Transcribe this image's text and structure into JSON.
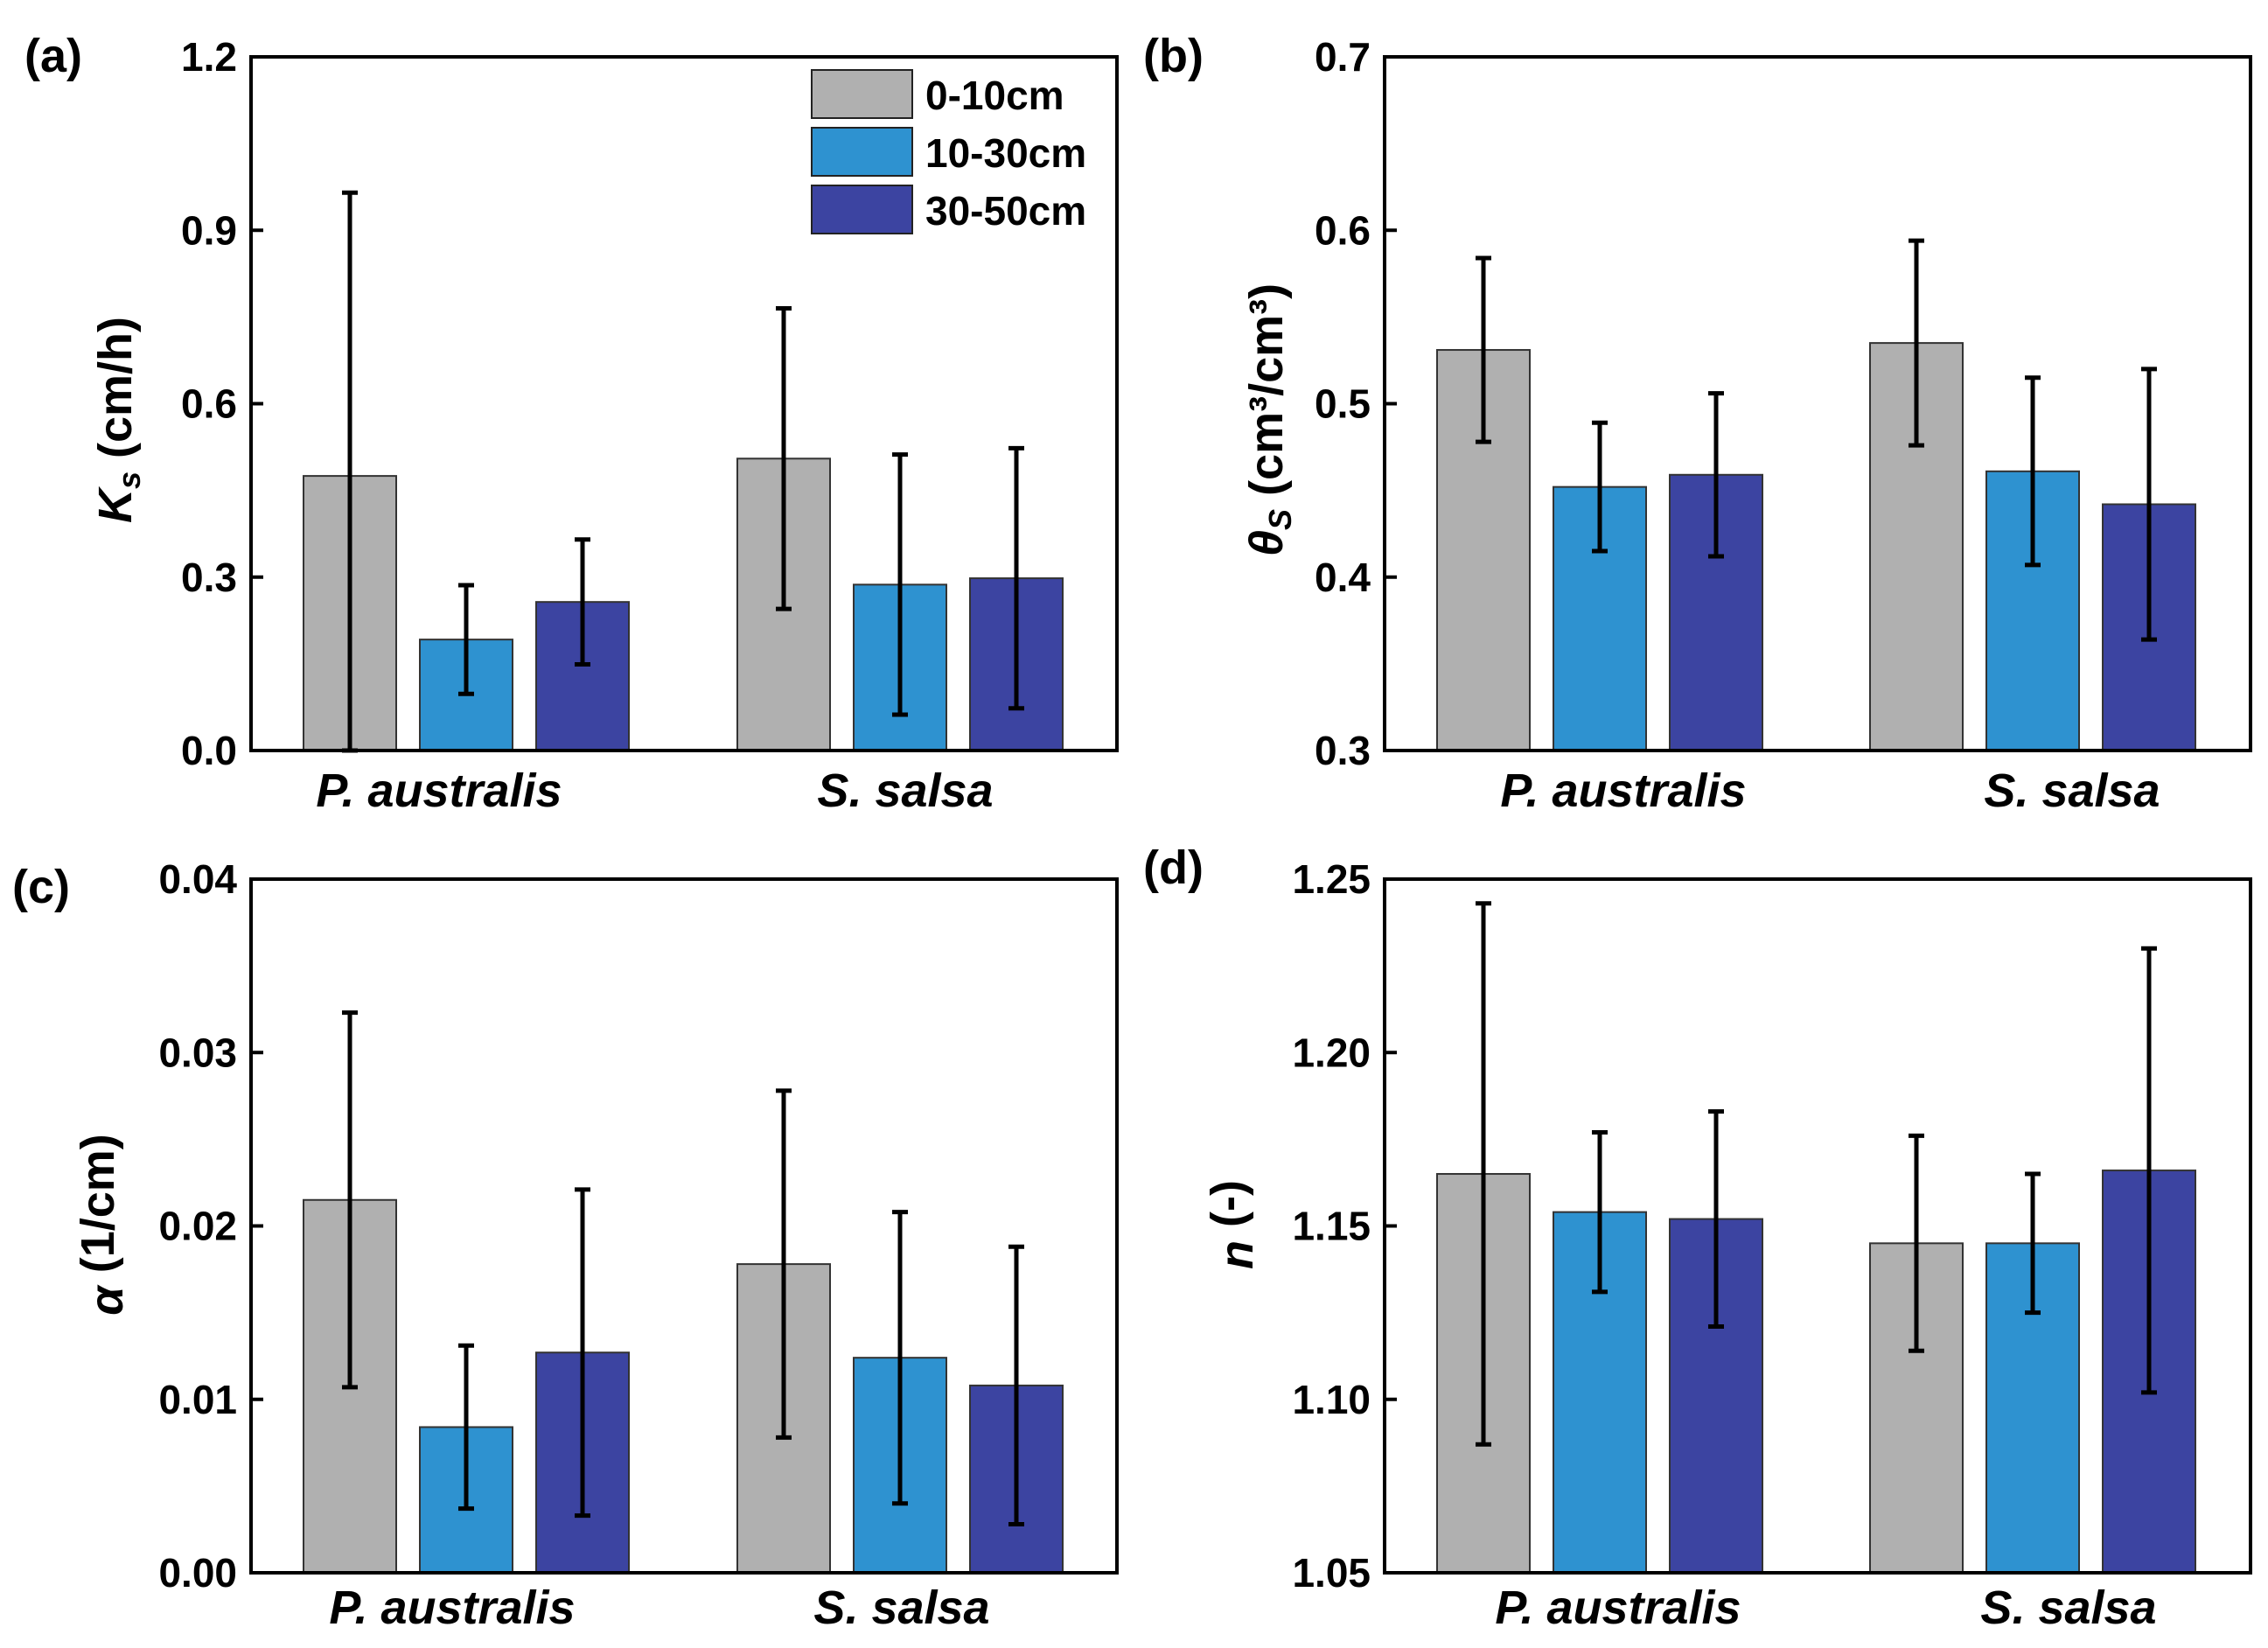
{
  "figure": {
    "legend": {
      "entries": [
        "0-10cm",
        "10-30cm",
        "30-50cm"
      ],
      "colors": [
        "#b0b0b0",
        "#2e92d0",
        "#3c44a1"
      ],
      "position": "top-right of panel (a)"
    }
  },
  "chart_data": [
    {
      "type": "bar",
      "panel_label": "(a)",
      "ylabel_main": "K",
      "ylabel_sub": "s",
      "ylabel_rest": " (cm/h)",
      "categories": [
        "P. australis",
        "S. salsa"
      ],
      "series": [
        {
          "name": "0-10cm",
          "values": [
            0.475,
            0.505
          ],
          "errors": [
            0.49,
            0.26
          ]
        },
        {
          "name": "10-30cm",
          "values": [
            0.192,
            0.287
          ],
          "errors": [
            0.094,
            0.225
          ]
        },
        {
          "name": "30-50cm",
          "values": [
            0.257,
            0.298
          ],
          "errors": [
            0.108,
            0.225
          ]
        }
      ],
      "ylim": [
        0.0,
        1.2
      ],
      "yticks": [
        "0.0",
        "0.3",
        "0.6",
        "0.9",
        "1.2"
      ],
      "ytick_values": [
        0.0,
        0.3,
        0.6,
        0.9,
        1.2
      ]
    },
    {
      "type": "bar",
      "panel_label": "(b)",
      "ylabel_main": "θ",
      "ylabel_sub": "S",
      "ylabel_rest": " (cm³/cm³)",
      "categories": [
        "P. australis",
        "S. salsa"
      ],
      "series": [
        {
          "name": "0-10cm",
          "values": [
            0.531,
            0.535
          ],
          "errors": [
            0.053,
            0.059
          ]
        },
        {
          "name": "10-30cm",
          "values": [
            0.452,
            0.461
          ],
          "errors": [
            0.037,
            0.054
          ]
        },
        {
          "name": "30-50cm",
          "values": [
            0.459,
            0.442
          ],
          "errors": [
            0.047,
            0.078
          ]
        }
      ],
      "ylim": [
        0.3,
        0.7
      ],
      "yticks": [
        "0.3",
        "0.4",
        "0.5",
        "0.6",
        "0.7"
      ],
      "ytick_values": [
        0.3,
        0.4,
        0.5,
        0.6,
        0.7
      ]
    },
    {
      "type": "bar",
      "panel_label": "(c)",
      "ylabel_main": "α",
      "ylabel_sub": "",
      "ylabel_rest": " (1/cm)",
      "categories": [
        "P. australis",
        "S. salsa"
      ],
      "series": [
        {
          "name": "0-10cm",
          "values": [
            0.0215,
            0.0178
          ],
          "errors": [
            0.0108,
            0.01
          ]
        },
        {
          "name": "10-30cm",
          "values": [
            0.0084,
            0.0124
          ],
          "errors": [
            0.0047,
            0.0084
          ]
        },
        {
          "name": "30-50cm",
          "values": [
            0.0127,
            0.0108
          ],
          "errors": [
            0.0094,
            0.008
          ]
        }
      ],
      "ylim": [
        0.0,
        0.04
      ],
      "yticks": [
        "0.00",
        "0.01",
        "0.02",
        "0.03",
        "0.04"
      ],
      "ytick_values": [
        0.0,
        0.01,
        0.02,
        0.03,
        0.04
      ]
    },
    {
      "type": "bar",
      "panel_label": "(d)",
      "ylabel_main": "n",
      "ylabel_sub": "",
      "ylabel_rest": " (-)",
      "categories": [
        "P. australis",
        "S. salsa"
      ],
      "series": [
        {
          "name": "0-10cm",
          "values": [
            1.165,
            1.145
          ],
          "errors": [
            0.078,
            0.031
          ]
        },
        {
          "name": "10-30cm",
          "values": [
            1.154,
            1.145
          ],
          "errors": [
            0.023,
            0.02
          ]
        },
        {
          "name": "30-50cm",
          "values": [
            1.152,
            1.166
          ],
          "errors": [
            0.031,
            0.064
          ]
        }
      ],
      "ylim": [
        1.05,
        1.25
      ],
      "yticks": [
        "1.05",
        "1.10",
        "1.15",
        "1.20",
        "1.25"
      ],
      "ytick_values": [
        1.05,
        1.1,
        1.15,
        1.2,
        1.25
      ]
    }
  ]
}
